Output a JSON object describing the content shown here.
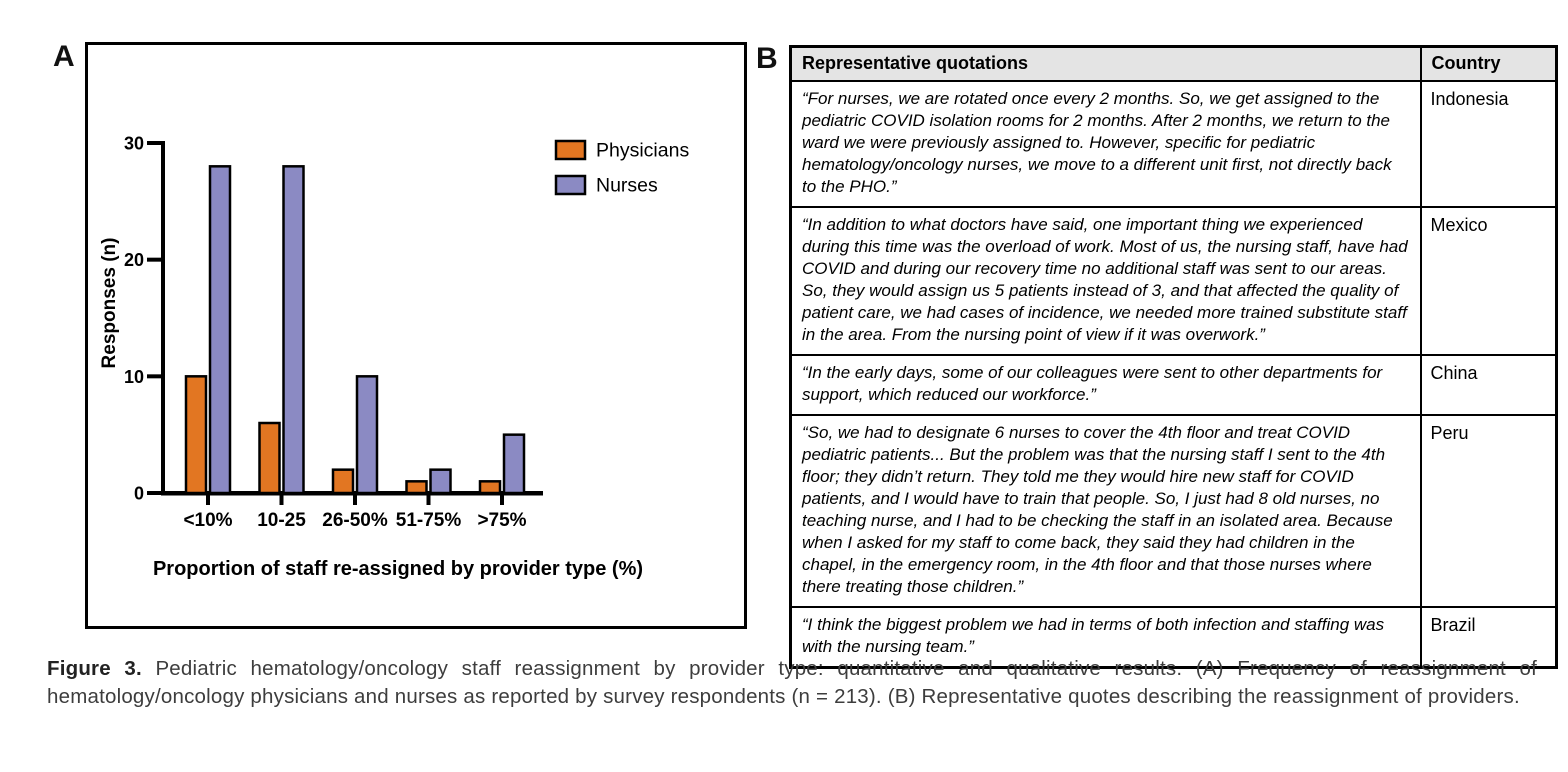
{
  "panel_a": {
    "label": "A"
  },
  "panel_b": {
    "label": "B",
    "table": {
      "headers": [
        "Representative quotations",
        "Country"
      ],
      "rows": [
        {
          "quote": "“For nurses, we are rotated once every 2 months. So, we get assigned to the pediatric COVID isolation rooms for 2 months. After 2 months, we return to the ward we were previously assigned to. However, specific for pediatric hematology/oncology nurses, we move to a different unit first, not directly back to the PHO.”",
          "country": "Indonesia"
        },
        {
          "quote": "“In addition to what doctors have said, one important thing we experienced during this time was the overload of work. Most of us, the nursing staff, have had COVID and during our recovery time no additional staff was sent to our areas. So, they would assign us 5 patients instead of 3, and that affected the quality of patient care, we had cases of incidence, we needed more trained substitute staff in the area. From the nursing point of view if it was overwork.”",
          "country": "Mexico"
        },
        {
          "quote": "“In the early days, some of our colleagues were sent to other departments for support, which reduced our workforce.”",
          "country": "China"
        },
        {
          "quote": "“So, we had to designate 6 nurses to cover the 4th floor and treat COVID pediatric patients... But the problem was that the nursing staff I sent to the 4th floor; they didn’t return. They told me they would hire new staff for COVID patients, and I would have to train that people. So, I just had 8 old nurses, no teaching nurse, and I had to be checking the staff in an isolated area. Because when I asked for my staff to come back, they said they had children in the chapel, in the emergency room, in the 4th floor and that those nurses where there treating those children.”",
          "country": "Peru"
        },
        {
          "quote": "“I think the biggest problem we had in terms of both infection and staffing was with the nursing team.”",
          "country": "Brazil"
        }
      ]
    }
  },
  "chart_data": {
    "type": "bar",
    "categories": [
      "<10%",
      "10-25",
      "26-50%",
      "51-75%",
      ">75%"
    ],
    "series": [
      {
        "name": "Physicians",
        "color": "#E27622",
        "values": [
          10,
          6,
          2,
          1,
          1
        ]
      },
      {
        "name": "Nurses",
        "color": "#8B8AC3",
        "values": [
          28,
          28,
          10,
          2,
          5
        ]
      }
    ],
    "title": "",
    "xlabel": "Proportion of staff re-assigned by provider type (%)",
    "ylabel": "Responses (n)",
    "ylim": [
      0,
      30
    ],
    "yticks": [
      0,
      10,
      20,
      30
    ],
    "grid": false,
    "legend_position": "top-right"
  },
  "caption": {
    "label": "Figure 3.",
    "text": " Pediatric hematology/oncology staff reassignment by provider type: quantitative and qualitative results. (A) Frequency of reassignment of hematology/oncology physicians and nurses as reported by survey respondents (n = 213). (B) Representative quotes describing the reassignment of providers."
  }
}
